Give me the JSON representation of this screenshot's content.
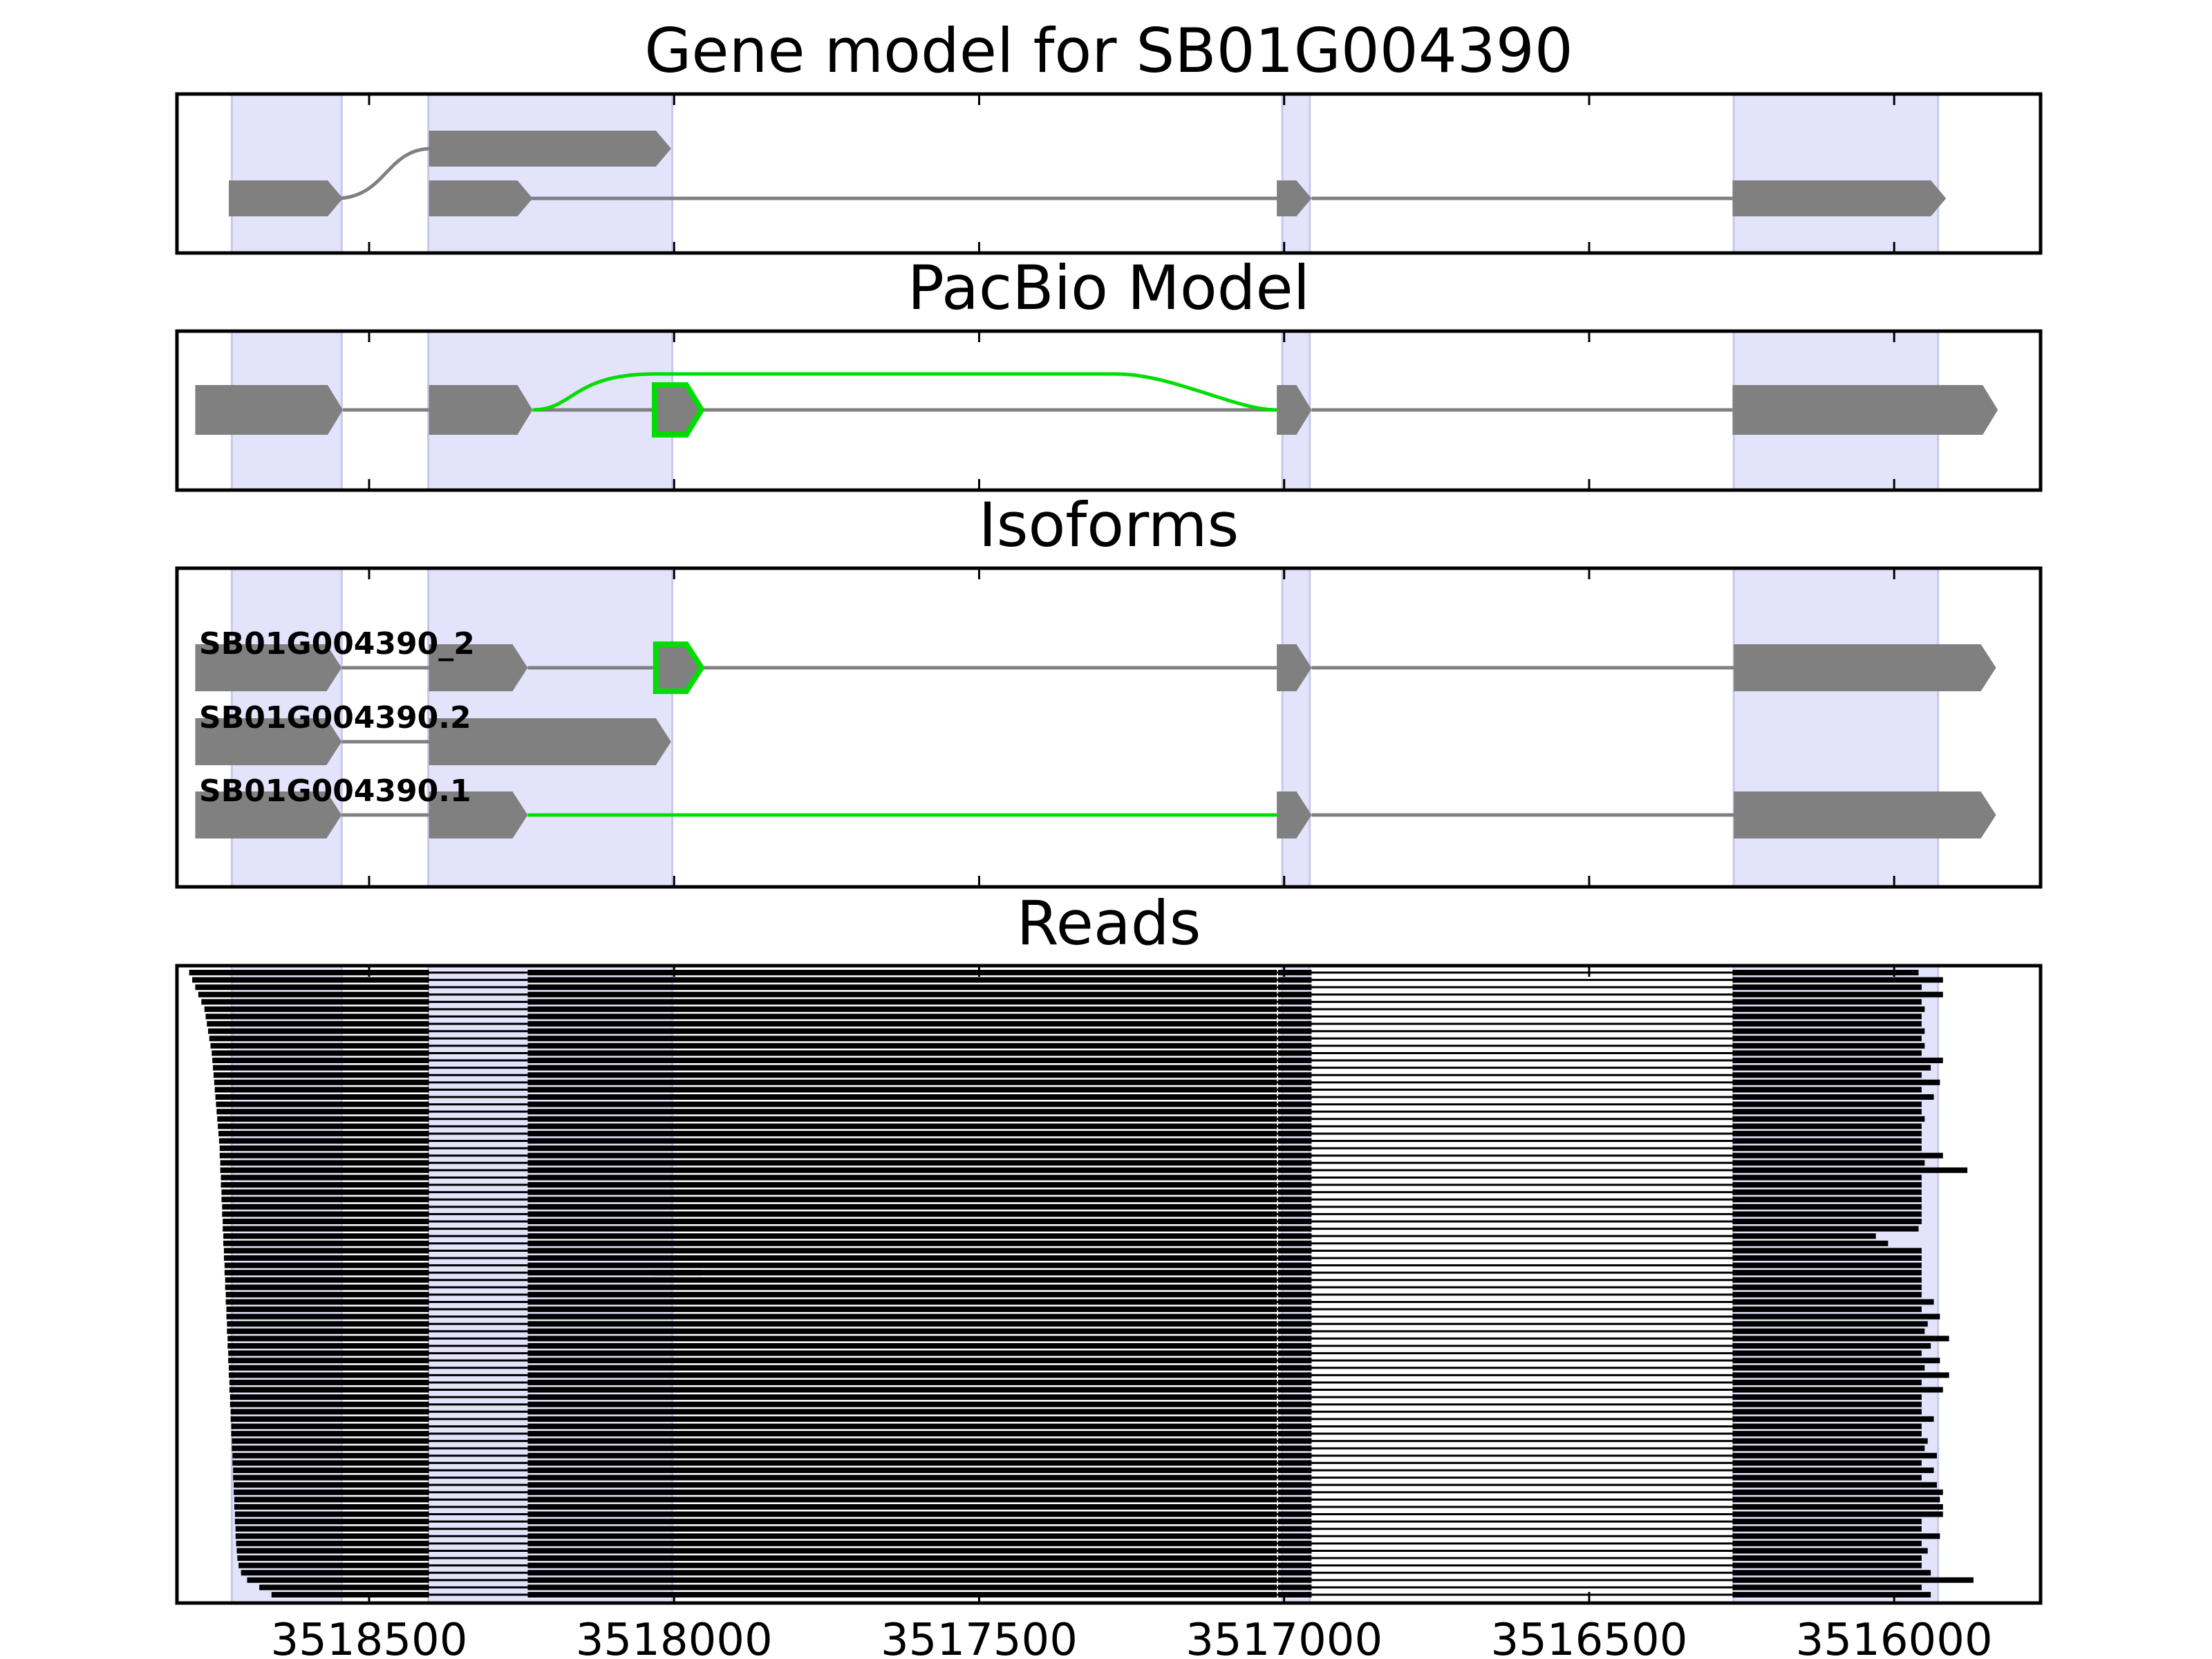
{
  "colors": {
    "shade": "#e3e3fb",
    "shade_edge": "#c8c8ee",
    "exon": "#808080",
    "intron": "#808080",
    "highlight": "#00dd00",
    "read": "#000000",
    "frame": "#000000"
  },
  "chart_data": {
    "type": "gene-model",
    "x_axis": {
      "reversed": true,
      "xlim": [
        3518815,
        3515760
      ],
      "ticks": [
        3518500,
        3518000,
        3517500,
        3517000,
        3516500,
        3516000
      ],
      "tick_labels": [
        "3518500",
        "3518000",
        "3517500",
        "3517000",
        "3516500",
        "3516000"
      ]
    },
    "shaded_regions": [
      [
        3518725,
        3518545
      ],
      [
        3518403,
        3518003
      ],
      [
        3517003,
        3516958
      ],
      [
        3516263,
        3515928
      ]
    ],
    "panels": [
      {
        "key": "gene_model",
        "title": "Gene model for SB01G004390",
        "lanes": [
          {
            "label": "",
            "exons": [
              [
                3518402,
                3518005
              ]
            ],
            "introns": [],
            "highlight_exons": [],
            "highlight_introns": []
          },
          {
            "label": "",
            "exons": [
              [
                3518730,
                3518543
              ],
              [
                3518402,
                3518232
              ],
              [
                3517012,
                3516955
              ],
              [
                3516265,
                3515915
              ]
            ],
            "introns": [
              [
                3518402,
                3518232,
                3517012
              ],
              [
                3516955,
                3516265
              ]
            ],
            "highlight_exons": [],
            "highlight_introns": []
          }
        ],
        "connectors": [
          {
            "from_lane": 1,
            "to_lane": 0,
            "x0": 3518543,
            "x1": 3518402
          }
        ]
      },
      {
        "key": "pacbio_model",
        "title": "PacBio Model",
        "lanes": [
          {
            "label": "",
            "exons": [
              [
                3518785,
                3518543
              ],
              [
                3518402,
                3518232
              ],
              [
                3517012,
                3516955
              ],
              [
                3516265,
                3515830
              ]
            ],
            "introns": [
              [
                3518543,
                3518402
              ],
              [
                3518232,
                3517012
              ],
              [
                3516955,
                3516265
              ]
            ],
            "highlight_exons": [
              [
                3518032,
                3517955
              ]
            ],
            "highlight_introns": []
          }
        ],
        "arc": {
          "x0": 3518232,
          "x1": 3517012,
          "plateau_start": 3518032,
          "plateau_end": 3517275
        }
      },
      {
        "key": "isoforms",
        "title": "Isoforms",
        "lanes": [
          {
            "label": "SB01G004390_2",
            "exons": [
              [
                3518785,
                3518545
              ],
              [
                3518402,
                3518240
              ],
              [
                3517012,
                3516955
              ],
              [
                3516263,
                3515833
              ]
            ],
            "introns": [
              [
                3518545,
                3518402
              ],
              [
                3518240,
                3518030
              ],
              [
                3517955,
                3517012
              ],
              [
                3516955,
                3516263
              ]
            ],
            "highlight_exons": [
              [
                3518030,
                3517955
              ]
            ],
            "highlight_introns": []
          },
          {
            "label": "SB01G004390.2",
            "exons": [
              [
                3518785,
                3518545
              ],
              [
                3518402,
                3518005
              ]
            ],
            "introns": [
              [
                3518545,
                3518402
              ]
            ],
            "highlight_exons": [],
            "highlight_introns": []
          },
          {
            "label": "SB01G004390.1",
            "exons": [
              [
                3518785,
                3518545
              ],
              [
                3518402,
                3518240
              ],
              [
                3517012,
                3516955
              ],
              [
                3516263,
                3515833
              ]
            ],
            "introns": [
              [
                3518545,
                3518402
              ],
              [
                3516955,
                3516263
              ]
            ],
            "highlight_exons": [],
            "highlight_introns": [
              [
                3518240,
                3517012
              ]
            ]
          }
        ]
      },
      {
        "key": "reads",
        "title": "Reads",
        "read_blocks": [
          [
            3518545,
            3518402
          ],
          [
            3518240,
            3517012
          ],
          [
            3517010,
            3516955
          ],
          [
            3516265,
            3515915
          ]
        ],
        "read_count": 86,
        "left_starts": [
          3518795,
          3518790,
          3518785,
          3518780,
          3518775,
          3518770,
          3518768,
          3518766,
          3518764,
          3518762,
          3518760,
          3518758,
          3518757,
          3518756,
          3518755,
          3518754,
          3518753,
          3518752,
          3518751,
          3518750,
          3518749,
          3518748,
          3518747,
          3518746,
          3518745,
          3518745,
          3518744,
          3518744,
          3518743,
          3518743,
          3518742,
          3518742,
          3518741,
          3518741,
          3518740,
          3518740,
          3518739,
          3518739,
          3518738,
          3518738,
          3518737,
          3518737,
          3518736,
          3518736,
          3518735,
          3518735,
          3518734,
          3518734,
          3518733,
          3518733,
          3518732,
          3518732,
          3518731,
          3518731,
          3518730,
          3518730,
          3518729,
          3518729,
          3518728,
          3518728,
          3518727,
          3518727,
          3518726,
          3518726,
          3518725,
          3518725,
          3518724,
          3518724,
          3518723,
          3518723,
          3518722,
          3518722,
          3518721,
          3518721,
          3518720,
          3518720,
          3518719,
          3518719,
          3518718,
          3518717,
          3518716,
          3518714,
          3518710,
          3518700,
          3518680,
          3518660
        ],
        "right_ends": [
          3515960,
          3515920,
          3515955,
          3515920,
          3515955,
          3515950,
          3515955,
          3515955,
          3515950,
          3515955,
          3515950,
          3515955,
          3515920,
          3515940,
          3515955,
          3515925,
          3515955,
          3515935,
          3515955,
          3515955,
          3515950,
          3515955,
          3515955,
          3515955,
          3515955,
          3515920,
          3515950,
          3515880,
          3515955,
          3515955,
          3515955,
          3515955,
          3515955,
          3515955,
          3515955,
          3515960,
          3516030,
          3516010,
          3515955,
          3515955,
          3515955,
          3515955,
          3515955,
          3515955,
          3515955,
          3515935,
          3515955,
          3515925,
          3515945,
          3515950,
          3515910,
          3515940,
          3515955,
          3515925,
          3515950,
          3515910,
          3515955,
          3515920,
          3515955,
          3515955,
          3515955,
          3515935,
          3515955,
          3515955,
          3515945,
          3515950,
          3515930,
          3515955,
          3515935,
          3515955,
          3515930,
          3515920,
          3515925,
          3515920,
          3515920,
          3515955,
          3515955,
          3515925,
          3515955,
          3515945,
          3515955,
          3515955,
          3515940,
          3515870,
          3515955,
          3515940
        ],
        "odd_read": {
          "index": 41,
          "block": [
            3518032,
            3517955
          ]
        }
      }
    ]
  }
}
